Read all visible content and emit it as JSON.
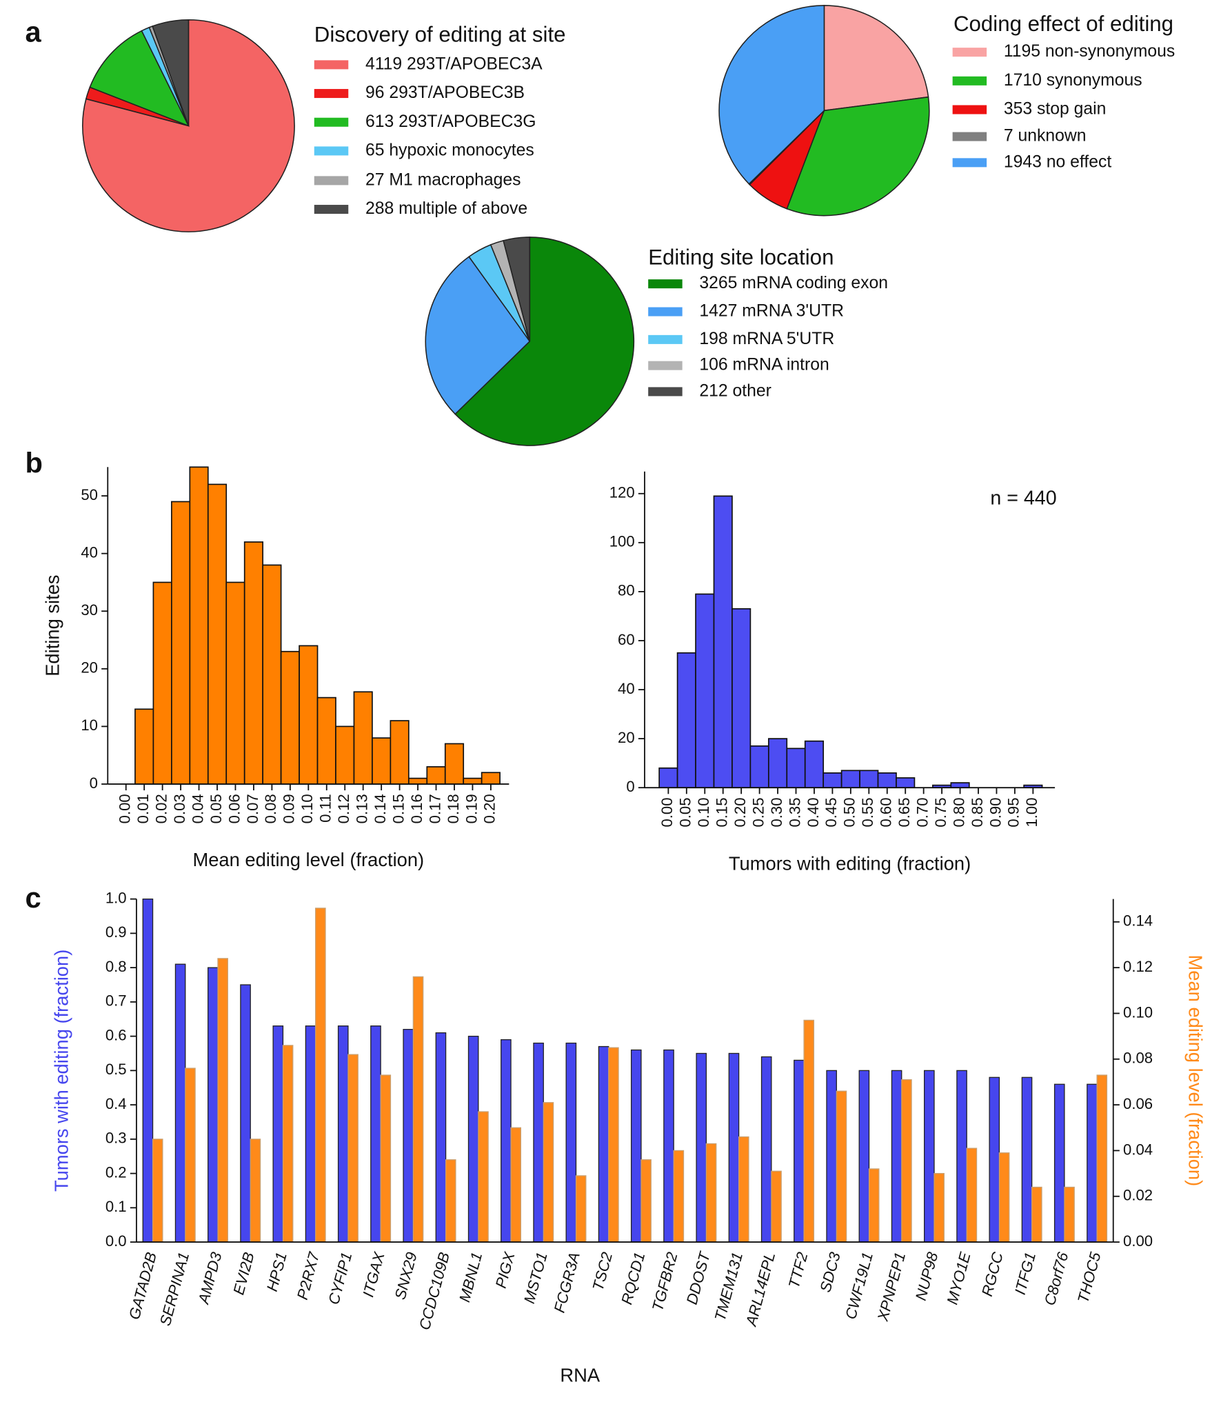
{
  "panel_labels": [
    "a",
    "b",
    "c"
  ],
  "chart_data": [
    {
      "type": "pie",
      "title": "Discovery of editing at site",
      "categories": [
        "4119 293T/APOBEC3A",
        "96 293T/APOBEC3B",
        "613 293T/APOBEC3G",
        "65 hypoxic monocytes",
        "27 M1 macrophages",
        "288 multiple of above"
      ],
      "values": [
        4119,
        96,
        613,
        65,
        27,
        288
      ],
      "colors": [
        "#f46464",
        "#ee1c1c",
        "#22bb22",
        "#5bc8f5",
        "#a6a6a6",
        "#4a4a4a"
      ]
    },
    {
      "type": "pie",
      "title": "Coding effect of editing",
      "categories": [
        "1195 non-synonymous",
        "1710 synonymous",
        "353 stop gain",
        "7 unknown",
        "1943 no effect"
      ],
      "values": [
        1195,
        1710,
        353,
        7,
        1943
      ],
      "colors": [
        "#f9a3a3",
        "#22bb22",
        "#ee1111",
        "#808080",
        "#4a9ff5"
      ]
    },
    {
      "type": "pie",
      "title": "Editing site location",
      "categories": [
        "3265 mRNA coding exon",
        "1427 mRNA 3'UTR",
        "198 mRNA 5'UTR",
        "106 mRNA intron",
        "212 other"
      ],
      "values": [
        3265,
        1427,
        198,
        106,
        212
      ],
      "colors": [
        "#0a870a",
        "#4a9ff5",
        "#5bc8f5",
        "#b3b3b3",
        "#4a4a4a"
      ]
    },
    {
      "type": "histogram",
      "xlabel": "Mean editing level (fraction)",
      "ylabel": "Editing sites",
      "color": "#ff8000",
      "bins": [
        0.005,
        0.015,
        0.025,
        0.035,
        0.045,
        0.055,
        0.065,
        0.075,
        0.085,
        0.095,
        0.105,
        0.115,
        0.125,
        0.135,
        0.145,
        0.155,
        0.165,
        0.175,
        0.185,
        0.195,
        0.205
      ],
      "values": [
        13,
        35,
        49,
        55,
        52,
        35,
        42,
        38,
        23,
        24,
        15,
        10,
        16,
        8,
        11,
        1,
        3,
        7,
        1,
        2
      ],
      "xlim": [
        -0.01,
        0.21
      ],
      "xticks": [
        {
          "value": 0,
          "label": "0.00"
        },
        0.01,
        0.02,
        0.03,
        0.04,
        0.05,
        0.06,
        0.07,
        0.08,
        0.09,
        {
          "value": 0.1,
          "label": "0.10"
        },
        0.11,
        0.12,
        0.13,
        0.14,
        0.15,
        0.16,
        0.17,
        0.18,
        0.19,
        {
          "value": 0.2,
          "label": "0.20"
        }
      ],
      "ylim": [
        0,
        55
      ],
      "yticks": [
        0,
        10,
        20,
        30,
        40,
        50
      ]
    },
    {
      "type": "histogram",
      "xlabel": "Tumors with editing (fraction)",
      "annotation": "n = 440",
      "color": "#4d4df2",
      "bins": [
        -0.025,
        0.025,
        0.075,
        0.125,
        0.175,
        0.225,
        0.275,
        0.325,
        0.375,
        0.425,
        0.475,
        0.525,
        0.575,
        0.625,
        0.675,
        0.725,
        0.775,
        0.825,
        0.875,
        0.925,
        0.975,
        1.025
      ],
      "values": [
        8,
        55,
        79,
        119,
        73,
        17,
        20,
        16,
        19,
        6,
        7,
        7,
        6,
        4,
        0,
        1,
        2,
        0,
        0,
        0,
        1
      ],
      "xlim": [
        -0.065,
        1.06
      ],
      "xticks": [
        {
          "value": 0,
          "label": "0.00"
        },
        0.05,
        {
          "value": 0.1,
          "label": "0.10"
        },
        0.15,
        {
          "value": 0.2,
          "label": "0.20"
        },
        0.25,
        {
          "value": 0.3,
          "label": "0.30"
        },
        0.35,
        {
          "value": 0.4,
          "label": "0.40"
        },
        0.45,
        {
          "value": 0.5,
          "label": "0.50"
        },
        0.55,
        {
          "value": 0.6,
          "label": "0.60"
        },
        0.65,
        {
          "value": 0.7,
          "label": "0.70"
        },
        0.75,
        {
          "value": 0.8,
          "label": "0.80"
        },
        0.85,
        {
          "value": 0.9,
          "label": "0.90"
        },
        0.95,
        {
          "value": 1,
          "label": "1.00"
        }
      ],
      "ylim": [
        0,
        129
      ],
      "yticks": [
        0,
        20,
        40,
        60,
        80,
        100,
        120
      ]
    },
    {
      "type": "bar",
      "xlabel": "RNA",
      "categories": [
        "GATAD2B",
        "SERPINA1",
        "AMPD3",
        "EVI2B",
        "HPS1",
        "P2RX7",
        "CYFIP1",
        "ITGAX",
        "SNX29",
        "CCDC109B",
        "MBNL1",
        "PIGX",
        "MSTO1",
        "FCGR3A",
        "TSC2",
        "RQCD1",
        "TGFBR2",
        "DDOST",
        "TMEM131",
        "ARL14EPL",
        "TTF2",
        "SDC3",
        "CWF19L1",
        "XPNPEP1",
        "NUP98",
        "MYO1E",
        "RGCC",
        "ITFG1",
        "C8orf76",
        "THOC5"
      ],
      "series": [
        {
          "name": "Tumors with editing (fraction)",
          "color": "#4646ee",
          "values": [
            1.0,
            0.81,
            0.8,
            0.75,
            0.63,
            0.63,
            0.63,
            0.63,
            0.62,
            0.61,
            0.6,
            0.59,
            0.58,
            0.58,
            0.57,
            0.56,
            0.56,
            0.55,
            0.55,
            0.54,
            0.53,
            0.5,
            0.5,
            0.5,
            0.5,
            0.5,
            0.48,
            0.48,
            0.46,
            0.46
          ]
        },
        {
          "name": "Mean editing level (fraction)",
          "color": "#ff8a1a",
          "axis": "y2",
          "values": [
            0.045,
            0.076,
            0.124,
            0.045,
            0.086,
            0.146,
            0.082,
            0.073,
            0.116,
            0.036,
            0.057,
            0.05,
            0.061,
            0.029,
            0.085,
            0.036,
            0.04,
            0.043,
            0.046,
            0.031,
            0.097,
            0.066,
            0.032,
            0.071,
            0.03,
            0.041,
            0.039,
            0.024,
            0.024,
            0.073
          ]
        }
      ],
      "ylim": [
        0,
        1.0
      ],
      "yticks": [
        {
          "value": 0,
          "label": "0.0"
        },
        0.1,
        0.2,
        0.3,
        0.4,
        0.5,
        0.6,
        0.7,
        0.8,
        0.9,
        {
          "value": 1,
          "label": "1.0"
        }
      ],
      "y2lim": [
        0,
        0.15
      ],
      "y2ticks": [
        {
          "value": 0,
          "label": "0.00"
        },
        0.02,
        0.04,
        0.06,
        0.08,
        {
          "value": 0.1,
          "label": "0.10"
        },
        0.12,
        0.14
      ]
    }
  ]
}
